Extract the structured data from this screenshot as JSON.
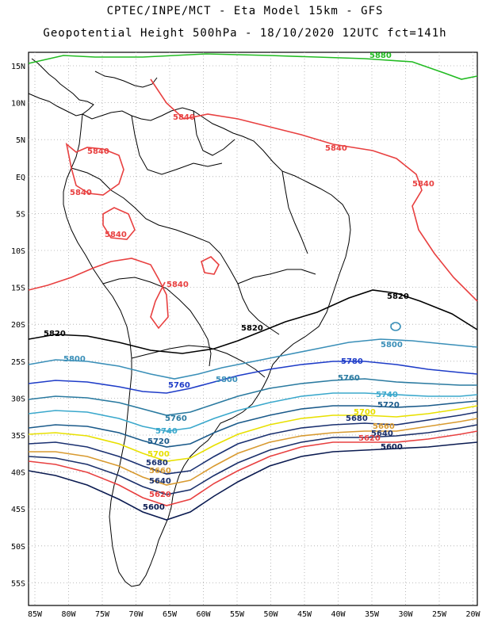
{
  "title_line1": "CPTEC/INPE/MCT -  Eta Model 15km - GFS",
  "title_line2": "Geopotential Height 500hPa - 18/10/2020 12UTC fct=141h",
  "colors": {
    "c5880": "#22bb22",
    "c5840": "#e84040",
    "c5820": "#000000",
    "c5800": "#3a8fb8",
    "c5780": "#1e3cc8",
    "c5760": "#2a7aa0",
    "c5740": "#3aa8cc",
    "c5720": "#1a5a8a",
    "c5700": "#e8e000",
    "c5680": "#1a3070",
    "c5660": "#d89a30",
    "c5640": "#1a2f6a",
    "c5620": "#e84040",
    "c5600": "#0a1a50"
  },
  "lat_labels": [
    "15N",
    "10N",
    "5N",
    "EQ",
    "5S",
    "10S",
    "15S",
    "20S",
    "25S",
    "30S",
    "35S",
    "40S",
    "45S",
    "50S",
    "55S"
  ],
  "lon_labels": [
    "85W",
    "80W",
    "75W",
    "70W",
    "65W",
    "60W",
    "55W",
    "50W",
    "45W",
    "40W",
    "35W",
    "30W",
    "25W",
    "20W"
  ],
  "contour_labels": {
    "l5880": "5880",
    "l5840a": "5840",
    "l5840b": "5840",
    "l5840c": "5840",
    "l5840d": "5840",
    "l5840e": "5840",
    "l5840f": "5840",
    "l5840g": "5840",
    "l5820a": "5820",
    "l5820b": "5820",
    "l5820c": "5820",
    "l5800a": "5800",
    "l5800b": "5800",
    "l5800c": "5800",
    "l5780a": "5780",
    "l5780b": "5760",
    "l5760a": "5760",
    "l5760b": "5760",
    "l5740a": "5740",
    "l5740b": "5740",
    "l5720a": "5720",
    "l5720b": "5720",
    "l5700a": "5700",
    "l5700b": "5700",
    "l5680a": "5680",
    "l5680b": "5680",
    "l5660a": "5660",
    "l5660b": "5660",
    "l5640a": "5640",
    "l5640b": "5640",
    "l5620a": "5620",
    "l5620b": "5620",
    "l5600a": "5600",
    "l5600b": "5600"
  }
}
